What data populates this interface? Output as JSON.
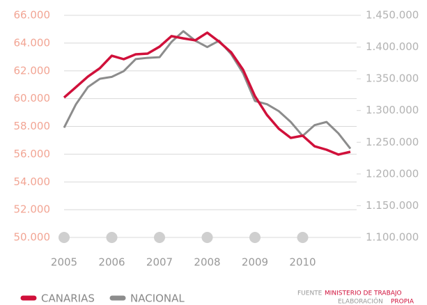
{
  "chart_data": {
    "type": "line",
    "x": [
      2005,
      2005.25,
      2005.5,
      2005.75,
      2006,
      2006.25,
      2006.5,
      2006.75,
      2007,
      2007.25,
      2007.5,
      2007.75,
      2008,
      2008.25,
      2008.5,
      2008.75,
      2009,
      2009.25,
      2009.5,
      2009.75,
      2010,
      2010.25,
      2010.5,
      2010.75,
      2011
    ],
    "xlim": [
      2005,
      2011
    ],
    "xticks": [
      2005,
      2006,
      2007,
      2008,
      2009,
      2010
    ],
    "series": [
      {
        "name": "CANARIAS",
        "color": "#d0103a",
        "values": [
          60080,
          60830,
          61590,
          62190,
          63090,
          62840,
          63190,
          63240,
          63740,
          64500,
          64340,
          64200,
          64750,
          64100,
          63340,
          62090,
          60180,
          58830,
          57830,
          57170,
          57330,
          56570,
          56320,
          55970,
          56170
        ]
      },
      {
        "name": "NACIONAL",
        "color": "#8c8c8c",
        "axis": "y2",
        "values": [
          1273000,
          1310000,
          1337000,
          1350000,
          1353000,
          1362000,
          1381000,
          1383000,
          1384000,
          1408000,
          1425000,
          1410000,
          1400000,
          1410000,
          1389000,
          1359000,
          1315000,
          1310000,
          1299000,
          1282000,
          1260000,
          1277000,
          1282000,
          1264000,
          1240000
        ]
      }
    ],
    "ylim": [
      50000,
      66000
    ],
    "yticks": [
      {
        "value": 50000,
        "label": "50.000"
      },
      {
        "value": 52000,
        "label": "52.000"
      },
      {
        "value": 54000,
        "label": "54.000"
      },
      {
        "value": 56000,
        "label": "56.000"
      },
      {
        "value": 58000,
        "label": "58.000"
      },
      {
        "value": 60000,
        "label": "60.000"
      },
      {
        "value": 62000,
        "label": "62.000"
      },
      {
        "value": 64000,
        "label": "64.000"
      },
      {
        "value": 66000,
        "label": "66.000"
      }
    ],
    "y2lim": [
      1100000,
      1450000
    ],
    "y2ticks": [
      {
        "value": 1100000,
        "label": "1.100.000"
      },
      {
        "value": 1150000,
        "label": "1.150.000"
      },
      {
        "value": 1200000,
        "label": "1.200.000"
      },
      {
        "value": 1250000,
        "label": "1.250.000"
      },
      {
        "value": 1300000,
        "label": "1.300.000"
      },
      {
        "value": 1350000,
        "label": "1.350.000"
      },
      {
        "value": 1400000,
        "label": "1.400.000"
      },
      {
        "value": 1450000,
        "label": "1.450.000"
      }
    ],
    "grid": true,
    "source": [
      "FUENTE",
      "MINISTERIO DE TRABAJO",
      "ELABORACIÓN",
      "PROPIA"
    ]
  }
}
